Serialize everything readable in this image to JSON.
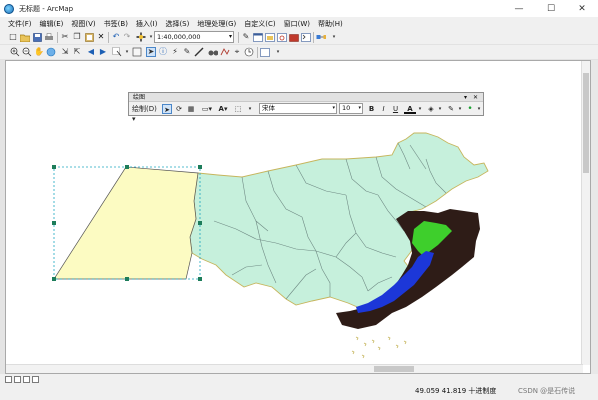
{
  "window": {
    "title": "无标题 - ArcMap",
    "controls": [
      "—",
      "☐",
      "✕"
    ]
  },
  "menu": [
    "文件(F)",
    "编辑(E)",
    "视图(V)",
    "书签(B)",
    "插入(I)",
    "选择(S)",
    "地理处理(G)",
    "自定义(C)",
    "窗口(W)",
    "帮助(H)"
  ],
  "toolbar": {
    "scale_value": "1:40,000,000"
  },
  "draw_toolbar": {
    "title": "绘图",
    "draw_menu_label": "绘制(D)",
    "text_tool": "A",
    "font": "宋体",
    "font_size": "10",
    "bold": "B",
    "italic": "I",
    "underline": "U",
    "font_color_label": "A",
    "panel_controls": "▾ ✕"
  },
  "status": {
    "coordinates": "49.059  41.819 十进制度",
    "watermark": "CSDN @是石传说"
  },
  "colors": {
    "land_fill": "#c6f0dc",
    "province_border": "#6f8a84",
    "national_border": "#c6b55c",
    "selected_polygon_fill": "#fcfbc2",
    "selection_handle": "#1d7d5a",
    "dem_dark": "#2e1c17",
    "dem_green": "#3ecf2c",
    "dem_blue": "#1c37d8"
  }
}
